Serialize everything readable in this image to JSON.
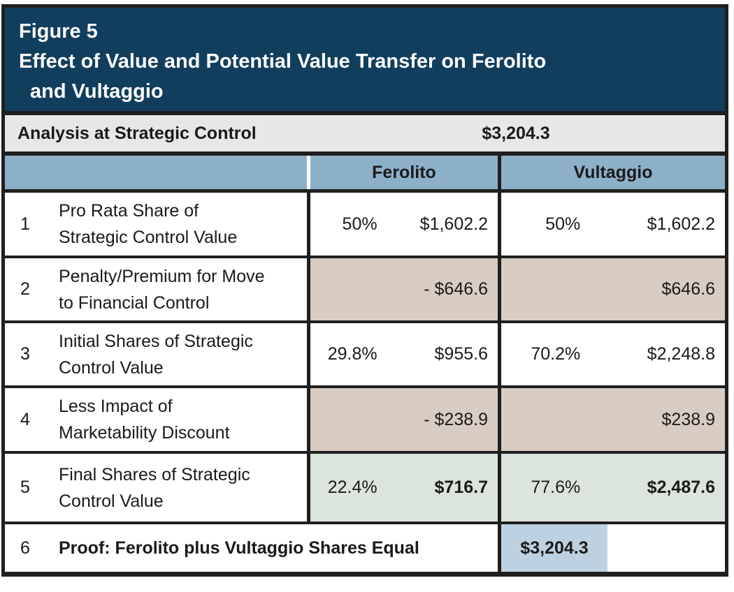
{
  "figure": {
    "label": "Figure 5",
    "title_line1": "Effect of Value and Potential Value Transfer on Ferolito",
    "title_line2": "and Vultaggio"
  },
  "analysis_row": {
    "label": "Analysis at Strategic Control",
    "value": "$3,204.3"
  },
  "columns": [
    "Ferolito",
    "Vultaggio"
  ],
  "rows": [
    {
      "num": "1",
      "label_line1": "Pro Rata Share of",
      "label_line2": "Strategic Control Value",
      "ferolito": {
        "pct": "50%",
        "value": "$1,602.2"
      },
      "vultaggio": {
        "pct": "50%",
        "value": "$1,602.2"
      }
    },
    {
      "num": "2",
      "label_line1": "Penalty/Premium for Move",
      "label_line2": "to Financial Control",
      "ferolito": {
        "pct": "",
        "value": "- $646.6"
      },
      "vultaggio": {
        "pct": "",
        "value": "$646.6"
      }
    },
    {
      "num": "3",
      "label_line1": "Initial Shares of Strategic",
      "label_line2": "Control Value",
      "ferolito": {
        "pct": "29.8%",
        "value": "$955.6"
      },
      "vultaggio": {
        "pct": "70.2%",
        "value": "$2,248.8"
      }
    },
    {
      "num": "4",
      "label_line1": "Less Impact of",
      "label_line2": "Marketability Discount",
      "ferolito": {
        "pct": "",
        "value": "- $238.9"
      },
      "vultaggio": {
        "pct": "",
        "value": "$238.9"
      }
    },
    {
      "num": "5",
      "label_line1": "Final Shares of Strategic",
      "label_line2": "Control Value",
      "ferolito": {
        "pct": "22.4%",
        "value": "$716.7"
      },
      "vultaggio": {
        "pct": "77.6%",
        "value": "$2,487.6"
      }
    }
  ],
  "proof_row": {
    "num": "6",
    "label": "Proof: Ferolito plus Vultaggio Shares Equal",
    "value": "$3,204.3"
  },
  "colors": {
    "navy_header": "#123e5e",
    "column_header_blue": "#8db0c9",
    "analysis_gray": "#e7e7e6",
    "penalty_tan": "#d8ccc3",
    "final_green": "#dce5dc",
    "proof_blue": "#bcd2e2",
    "border_black": "#1f1f1f"
  }
}
